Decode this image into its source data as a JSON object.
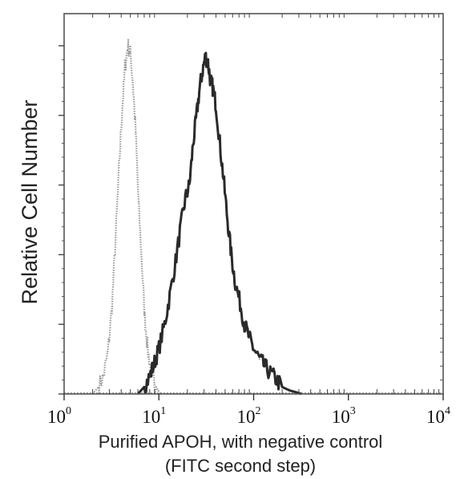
{
  "chart_data": {
    "type": "area",
    "title": "",
    "xlabel": [
      "Purified APOH, with negative control",
      "(FITC second step)"
    ],
    "ylabel": "Relative Cell Number",
    "x_scale": "log",
    "xlim": [
      1,
      10000
    ],
    "ylim": [
      0,
      1
    ],
    "x_ticks": [
      {
        "base": "10",
        "exp": "0",
        "value": 1
      },
      {
        "base": "10",
        "exp": "1",
        "value": 10
      },
      {
        "base": "10",
        "exp": "2",
        "value": 100
      },
      {
        "base": "10",
        "exp": "3",
        "value": 1000
      },
      {
        "base": "10",
        "exp": "4",
        "value": 10000
      }
    ],
    "y_ticks": [
      0,
      0.2,
      0.4,
      0.6,
      0.8,
      1.0
    ],
    "grid": false,
    "legend": "none",
    "series": [
      {
        "color": "#9a9a9a",
        "style": "dotted",
        "x": [
          2.0,
          2.3,
          2.6,
          2.9,
          3.2,
          3.5,
          3.8,
          4.1,
          4.4,
          4.7,
          5.0,
          5.3,
          5.7,
          6.1,
          6.6,
          7.1,
          7.7,
          8.3,
          9.0,
          9.8,
          10.5
        ],
        "y": [
          0.0,
          0.02,
          0.05,
          0.12,
          0.25,
          0.45,
          0.65,
          0.82,
          0.94,
          1.0,
          0.98,
          0.9,
          0.75,
          0.55,
          0.38,
          0.22,
          0.12,
          0.06,
          0.03,
          0.01,
          0.0
        ]
      },
      {
        "color": "#2a2a2a",
        "style": "solid",
        "x": [
          6.0,
          7.0,
          8.0,
          9.0,
          10.0,
          11.5,
          13.0,
          15.0,
          17.0,
          19.0,
          21.0,
          23.0,
          25.0,
          27.0,
          29.0,
          31.0,
          33.0,
          35.0,
          37.0,
          40.0,
          44.0,
          48.0,
          53.0,
          58.0,
          64.0,
          72.0,
          80.0,
          90.0,
          100.0,
          115.0,
          130.0,
          150.0,
          175.0,
          200.0,
          240.0,
          280.0,
          320.0
        ],
        "y": [
          0.0,
          0.02,
          0.05,
          0.09,
          0.13,
          0.2,
          0.28,
          0.38,
          0.48,
          0.56,
          0.6,
          0.72,
          0.8,
          0.88,
          0.93,
          0.97,
          0.95,
          0.9,
          0.88,
          0.83,
          0.72,
          0.62,
          0.5,
          0.4,
          0.32,
          0.26,
          0.2,
          0.16,
          0.13,
          0.1,
          0.08,
          0.06,
          0.04,
          0.02,
          0.01,
          0.005,
          0.0
        ]
      }
    ]
  }
}
